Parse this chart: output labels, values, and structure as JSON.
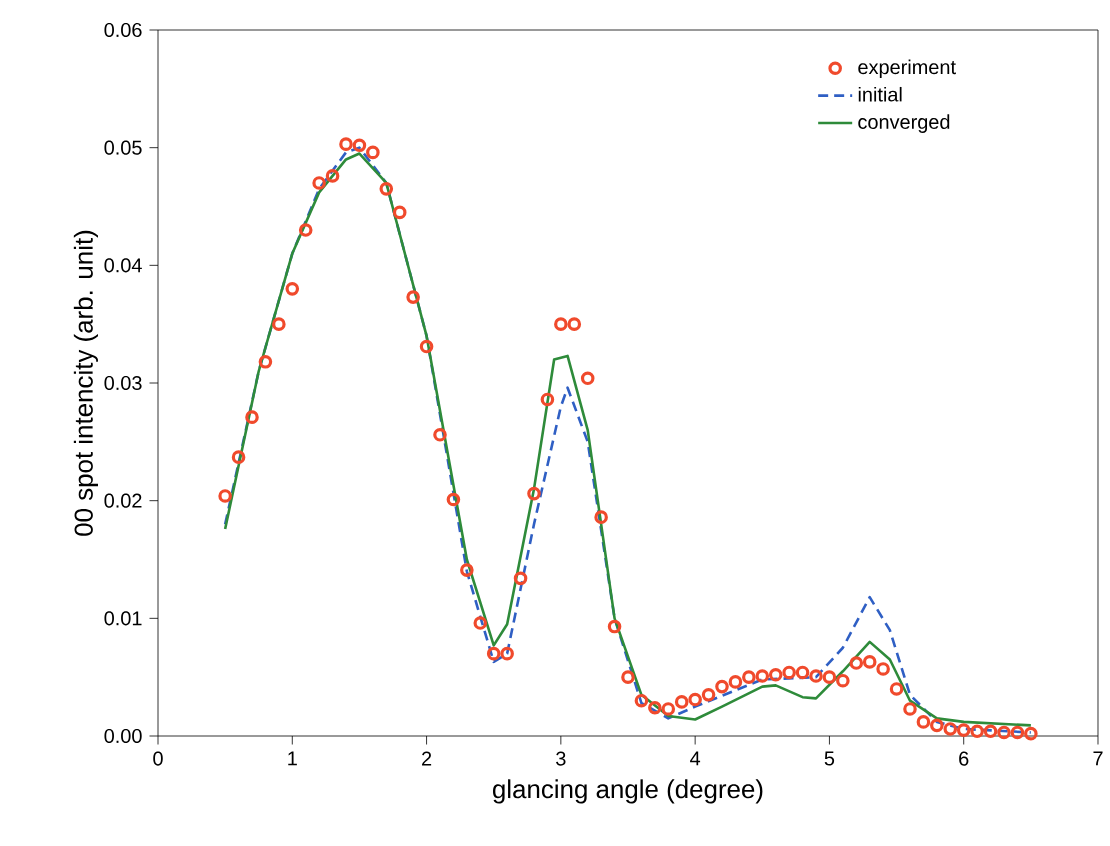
{
  "chart_data": {
    "type": "line",
    "xlabel": "glancing angle (degree)",
    "ylabel": "00 spot intencity (arb. unit)",
    "xlim": [
      0,
      7
    ],
    "ylim": [
      0,
      0.06
    ],
    "xticks": [
      0,
      1,
      2,
      3,
      4,
      5,
      6,
      7
    ],
    "yticks": [
      {
        "value": 0,
        "label": "0.00"
      },
      {
        "value": 0.01,
        "label": "0.01"
      },
      {
        "value": 0.02,
        "label": "0.02"
      },
      {
        "value": 0.03,
        "label": "0.03"
      },
      {
        "value": 0.04,
        "label": "0.04"
      },
      {
        "value": 0.05,
        "label": "0.05"
      },
      {
        "value": 0.06,
        "label": "0.06"
      }
    ],
    "grid": false,
    "legend": "top right",
    "series": [
      {
        "name": "experiment",
        "type": "scatter",
        "marker": "circle",
        "color": "#f04a2c",
        "x": [
          0.5,
          0.6,
          0.7,
          0.8,
          0.9,
          1.0,
          1.1,
          1.2,
          1.3,
          1.4,
          1.5,
          1.6,
          1.7,
          1.8,
          1.9,
          2.0,
          2.1,
          2.2,
          2.3,
          2.4,
          2.5,
          2.6,
          2.7,
          2.8,
          2.9,
          3.0,
          3.1,
          3.2,
          3.3,
          3.4,
          3.5,
          3.6,
          3.7,
          3.8,
          3.9,
          4.0,
          4.1,
          4.2,
          4.3,
          4.4,
          4.5,
          4.6,
          4.7,
          4.8,
          4.9,
          5.0,
          5.1,
          5.2,
          5.3,
          5.4,
          5.5,
          5.6,
          5.7,
          5.8,
          5.9,
          6.0,
          6.1,
          6.2,
          6.3,
          6.4,
          6.5
        ],
        "values": [
          0.0204,
          0.0237,
          0.0271,
          0.0318,
          0.035,
          0.038,
          0.043,
          0.047,
          0.0476,
          0.0503,
          0.0502,
          0.0496,
          0.0465,
          0.0445,
          0.0373,
          0.0331,
          0.0256,
          0.0201,
          0.0141,
          0.0096,
          0.007,
          0.007,
          0.0134,
          0.0206,
          0.0286,
          0.035,
          0.035,
          0.0304,
          0.0186,
          0.0093,
          0.005,
          0.003,
          0.0024,
          0.0023,
          0.0029,
          0.0031,
          0.0035,
          0.0042,
          0.0046,
          0.005,
          0.0051,
          0.0052,
          0.0054,
          0.0054,
          0.0051,
          0.005,
          0.0047,
          0.0062,
          0.0063,
          0.0057,
          0.004,
          0.0023,
          0.0012,
          0.0009,
          0.0006,
          0.0005,
          0.0004,
          0.0004,
          0.0003,
          0.0003,
          0.0002
        ]
      },
      {
        "name": "initial",
        "line_style": "dashed",
        "color": "#2f5fc4",
        "x": [
          0.5,
          0.75,
          1.0,
          1.2,
          1.4,
          1.5,
          1.7,
          2.0,
          2.3,
          2.5,
          2.6,
          2.8,
          3.0,
          3.05,
          3.2,
          3.4,
          3.6,
          3.8,
          4.0,
          4.5,
          4.9,
          5.1,
          5.3,
          5.45,
          5.6,
          5.8,
          6.0,
          6.5
        ],
        "values": [
          0.018,
          0.031,
          0.041,
          0.0465,
          0.0496,
          0.05,
          0.047,
          0.034,
          0.014,
          0.0063,
          0.007,
          0.018,
          0.028,
          0.0296,
          0.025,
          0.01,
          0.0028,
          0.0015,
          0.0025,
          0.0048,
          0.005,
          0.0075,
          0.0118,
          0.009,
          0.0035,
          0.0012,
          0.0006,
          0.0003
        ]
      },
      {
        "name": "converged",
        "line_style": "solid",
        "color": "#2e8b3a",
        "x": [
          0.5,
          0.75,
          1.0,
          1.2,
          1.4,
          1.5,
          1.7,
          2.0,
          2.3,
          2.5,
          2.6,
          2.8,
          2.95,
          3.05,
          3.2,
          3.4,
          3.6,
          3.8,
          4.0,
          4.2,
          4.5,
          4.6,
          4.8,
          4.9,
          5.1,
          5.3,
          5.45,
          5.6,
          5.8,
          6.0,
          6.5
        ],
        "values": [
          0.0176,
          0.031,
          0.041,
          0.0462,
          0.049,
          0.0495,
          0.047,
          0.034,
          0.015,
          0.0077,
          0.0095,
          0.021,
          0.032,
          0.0323,
          0.026,
          0.01,
          0.0035,
          0.0017,
          0.0014,
          0.0025,
          0.0042,
          0.0043,
          0.0033,
          0.0032,
          0.0055,
          0.008,
          0.0065,
          0.003,
          0.0015,
          0.0012,
          0.0009
        ]
      }
    ]
  }
}
